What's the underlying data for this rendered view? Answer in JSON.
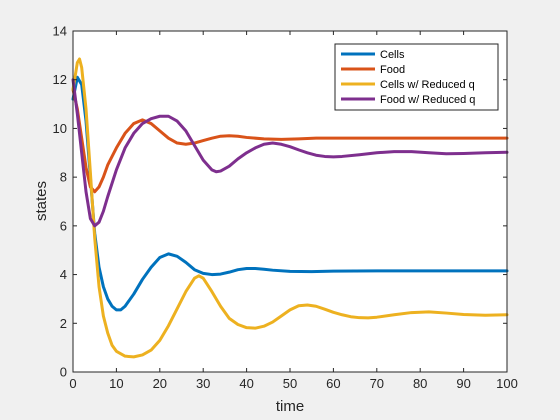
{
  "chart_data": {
    "type": "line",
    "title": "",
    "xlabel": "time",
    "ylabel": "states",
    "xlim": [
      0,
      100
    ],
    "ylim": [
      0,
      14
    ],
    "xticks": [
      0,
      10,
      20,
      30,
      40,
      50,
      60,
      70,
      80,
      90,
      100
    ],
    "yticks": [
      0,
      2,
      4,
      6,
      8,
      10,
      12,
      14
    ],
    "grid": false,
    "legend_position": "top-right",
    "series": [
      {
        "name": "Cells",
        "color": "#0072bd",
        "points": [
          [
            0,
            11.2
          ],
          [
            1,
            12.1
          ],
          [
            2,
            11.8
          ],
          [
            3,
            10.3
          ],
          [
            4,
            8.0
          ],
          [
            5,
            5.7
          ],
          [
            6,
            4.3
          ],
          [
            7,
            3.5
          ],
          [
            8,
            3.0
          ],
          [
            9,
            2.7
          ],
          [
            10,
            2.55
          ],
          [
            11,
            2.55
          ],
          [
            12,
            2.7
          ],
          [
            14,
            3.2
          ],
          [
            16,
            3.8
          ],
          [
            18,
            4.3
          ],
          [
            20,
            4.7
          ],
          [
            22,
            4.85
          ],
          [
            24,
            4.75
          ],
          [
            26,
            4.5
          ],
          [
            28,
            4.2
          ],
          [
            30,
            4.05
          ],
          [
            32,
            4.0
          ],
          [
            34,
            4.02
          ],
          [
            36,
            4.1
          ],
          [
            38,
            4.2
          ],
          [
            40,
            4.25
          ],
          [
            42,
            4.25
          ],
          [
            44,
            4.22
          ],
          [
            46,
            4.18
          ],
          [
            50,
            4.13
          ],
          [
            55,
            4.12
          ],
          [
            60,
            4.14
          ],
          [
            70,
            4.15
          ],
          [
            80,
            4.15
          ],
          [
            90,
            4.15
          ],
          [
            100,
            4.15
          ]
        ]
      },
      {
        "name": "Food",
        "color": "#d95319",
        "points": [
          [
            0,
            11.6
          ],
          [
            1,
            10.8
          ],
          [
            2,
            9.6
          ],
          [
            3,
            8.4
          ],
          [
            4,
            7.6
          ],
          [
            5,
            7.4
          ],
          [
            6,
            7.6
          ],
          [
            7,
            8.0
          ],
          [
            8,
            8.5
          ],
          [
            10,
            9.2
          ],
          [
            12,
            9.8
          ],
          [
            14,
            10.2
          ],
          [
            16,
            10.35
          ],
          [
            18,
            10.2
          ],
          [
            20,
            9.9
          ],
          [
            22,
            9.6
          ],
          [
            24,
            9.4
          ],
          [
            26,
            9.35
          ],
          [
            28,
            9.4
          ],
          [
            30,
            9.5
          ],
          [
            32,
            9.6
          ],
          [
            34,
            9.68
          ],
          [
            36,
            9.7
          ],
          [
            38,
            9.68
          ],
          [
            40,
            9.63
          ],
          [
            44,
            9.57
          ],
          [
            48,
            9.55
          ],
          [
            52,
            9.57
          ],
          [
            56,
            9.6
          ],
          [
            60,
            9.6
          ],
          [
            70,
            9.6
          ],
          [
            80,
            9.6
          ],
          [
            90,
            9.6
          ],
          [
            100,
            9.6
          ]
        ]
      },
      {
        "name": "Cells w/ Reduced q",
        "color": "#edb120",
        "points": [
          [
            0,
            11.6
          ],
          [
            1,
            12.7
          ],
          [
            1.5,
            12.85
          ],
          [
            2,
            12.5
          ],
          [
            3,
            10.8
          ],
          [
            4,
            8.2
          ],
          [
            5,
            5.5
          ],
          [
            6,
            3.5
          ],
          [
            7,
            2.3
          ],
          [
            8,
            1.6
          ],
          [
            9,
            1.1
          ],
          [
            10,
            0.85
          ],
          [
            12,
            0.65
          ],
          [
            14,
            0.62
          ],
          [
            16,
            0.7
          ],
          [
            18,
            0.9
          ],
          [
            20,
            1.3
          ],
          [
            22,
            1.9
          ],
          [
            24,
            2.6
          ],
          [
            26,
            3.3
          ],
          [
            28,
            3.85
          ],
          [
            29,
            3.95
          ],
          [
            30,
            3.85
          ],
          [
            32,
            3.3
          ],
          [
            34,
            2.7
          ],
          [
            36,
            2.2
          ],
          [
            38,
            1.95
          ],
          [
            40,
            1.82
          ],
          [
            42,
            1.8
          ],
          [
            44,
            1.88
          ],
          [
            46,
            2.05
          ],
          [
            48,
            2.3
          ],
          [
            50,
            2.55
          ],
          [
            52,
            2.72
          ],
          [
            54,
            2.75
          ],
          [
            56,
            2.7
          ],
          [
            58,
            2.58
          ],
          [
            60,
            2.45
          ],
          [
            62,
            2.35
          ],
          [
            64,
            2.27
          ],
          [
            66,
            2.23
          ],
          [
            68,
            2.22
          ],
          [
            70,
            2.25
          ],
          [
            74,
            2.35
          ],
          [
            78,
            2.44
          ],
          [
            82,
            2.47
          ],
          [
            86,
            2.42
          ],
          [
            90,
            2.36
          ],
          [
            95,
            2.33
          ],
          [
            100,
            2.35
          ]
        ]
      },
      {
        "name": "Food w/ Reduced q",
        "color": "#7e2f8e",
        "points": [
          [
            0,
            12.0
          ],
          [
            1,
            10.6
          ],
          [
            2,
            9.0
          ],
          [
            3,
            7.4
          ],
          [
            4,
            6.3
          ],
          [
            5,
            6.0
          ],
          [
            6,
            6.15
          ],
          [
            7,
            6.6
          ],
          [
            8,
            7.2
          ],
          [
            10,
            8.3
          ],
          [
            12,
            9.2
          ],
          [
            14,
            9.8
          ],
          [
            16,
            10.2
          ],
          [
            18,
            10.4
          ],
          [
            20,
            10.5
          ],
          [
            22,
            10.5
          ],
          [
            24,
            10.3
          ],
          [
            26,
            9.9
          ],
          [
            28,
            9.3
          ],
          [
            30,
            8.7
          ],
          [
            32,
            8.3
          ],
          [
            33,
            8.22
          ],
          [
            34,
            8.25
          ],
          [
            36,
            8.45
          ],
          [
            38,
            8.75
          ],
          [
            40,
            9.0
          ],
          [
            42,
            9.2
          ],
          [
            44,
            9.35
          ],
          [
            46,
            9.4
          ],
          [
            48,
            9.35
          ],
          [
            50,
            9.25
          ],
          [
            52,
            9.12
          ],
          [
            54,
            9.0
          ],
          [
            56,
            8.9
          ],
          [
            58,
            8.85
          ],
          [
            60,
            8.83
          ],
          [
            62,
            8.85
          ],
          [
            66,
            8.92
          ],
          [
            70,
            9.0
          ],
          [
            74,
            9.05
          ],
          [
            78,
            9.05
          ],
          [
            82,
            9.0
          ],
          [
            86,
            8.96
          ],
          [
            90,
            8.97
          ],
          [
            95,
            9.0
          ],
          [
            100,
            9.02
          ]
        ]
      }
    ]
  }
}
